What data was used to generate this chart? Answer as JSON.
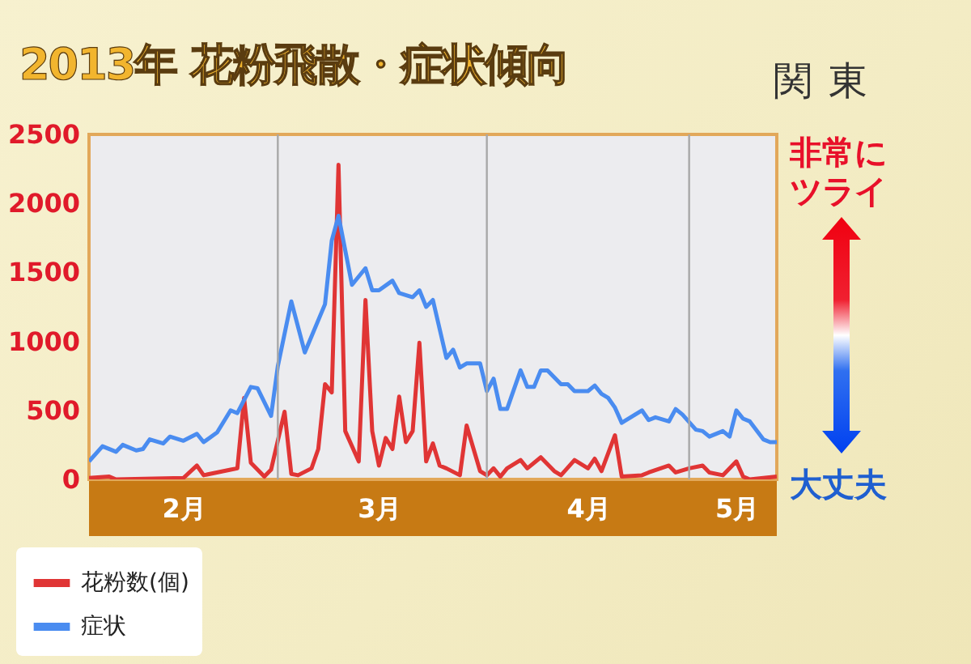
{
  "chart_data": {
    "type": "line",
    "title": "2013年 花粉飛散・症状傾向",
    "subtitle": "関東",
    "annotations": [
      "非常にツライ",
      "大丈夫"
    ],
    "xlim": [
      "2013-02-01",
      "2013-05-14"
    ],
    "xticks": [
      {
        "value": "2013-02-15",
        "label": "2月"
      },
      {
        "value": "2013-03-16",
        "label": "3月"
      },
      {
        "value": "2013-04-16",
        "label": "4月"
      },
      {
        "value": "2013-05-08",
        "label": "5月"
      }
    ],
    "ylim": [
      0,
      2500
    ],
    "yticks": [
      0,
      500,
      1000,
      1500,
      2000,
      2500
    ],
    "grid": false,
    "legend": "bottom left",
    "ref_lines": [
      {
        "axis": "x",
        "value": "2013-03-01",
        "label": null,
        "color": "#a8a8a8"
      },
      {
        "axis": "x",
        "value": "2013-04-01",
        "label": null,
        "color": "#a8a8a8"
      },
      {
        "axis": "x",
        "value": "2013-05-01",
        "label": null,
        "color": "#a8a8a8"
      }
    ],
    "series": [
      {
        "name": "花粉数(個)",
        "color": "#e03535",
        "x": [
          "2013-02-01",
          "2013-02-04",
          "2013-02-05",
          "2013-02-15",
          "2013-02-17",
          "2013-02-18",
          "2013-02-22",
          "2013-02-23",
          "2013-02-24",
          "2013-02-25",
          "2013-02-27",
          "2013-02-28",
          "2013-03-02",
          "2013-03-03",
          "2013-03-04",
          "2013-03-06",
          "2013-03-07",
          "2013-03-08",
          "2013-03-09",
          "2013-03-10",
          "2013-03-11",
          "2013-03-13",
          "2013-03-14",
          "2013-03-15",
          "2013-03-16",
          "2013-03-17",
          "2013-03-18",
          "2013-03-19",
          "2013-03-20",
          "2013-03-21",
          "2013-03-22",
          "2013-03-23",
          "2013-03-24",
          "2013-03-25",
          "2013-03-26",
          "2013-03-28",
          "2013-03-29",
          "2013-03-31",
          "2013-04-01",
          "2013-04-02",
          "2013-04-03",
          "2013-04-04",
          "2013-04-06",
          "2013-04-07",
          "2013-04-09",
          "2013-04-11",
          "2013-04-12",
          "2013-04-14",
          "2013-04-16",
          "2013-04-17",
          "2013-04-18",
          "2013-04-20",
          "2013-04-21",
          "2013-04-24",
          "2013-04-25",
          "2013-04-28",
          "2013-04-29",
          "2013-05-01",
          "2013-05-03",
          "2013-05-04",
          "2013-05-06",
          "2013-05-08",
          "2013-05-09",
          "2013-05-10",
          "2013-05-14"
        ],
        "values": [
          10,
          20,
          0,
          10,
          100,
          30,
          70,
          80,
          590,
          120,
          20,
          70,
          490,
          40,
          30,
          80,
          220,
          690,
          630,
          2280,
          350,
          130,
          1300,
          350,
          100,
          300,
          220,
          600,
          270,
          350,
          990,
          130,
          260,
          100,
          80,
          30,
          390,
          60,
          30,
          80,
          20,
          80,
          140,
          80,
          160,
          60,
          30,
          140,
          80,
          150,
          60,
          320,
          20,
          30,
          50,
          100,
          50,
          80,
          100,
          50,
          30,
          130,
          20,
          0,
          20
        ]
      },
      {
        "name": "症状",
        "color": "#4a8cf0",
        "x": [
          "2013-02-01",
          "2013-02-03",
          "2013-02-05",
          "2013-02-06",
          "2013-02-08",
          "2013-02-09",
          "2013-02-10",
          "2013-02-12",
          "2013-02-13",
          "2013-02-15",
          "2013-02-17",
          "2013-02-18",
          "2013-02-20",
          "2013-02-22",
          "2013-02-23",
          "2013-02-25",
          "2013-02-26",
          "2013-02-28",
          "2013-03-01",
          "2013-03-03",
          "2013-03-05",
          "2013-03-08",
          "2013-03-09",
          "2013-03-10",
          "2013-03-12",
          "2013-03-14",
          "2013-03-15",
          "2013-03-16",
          "2013-03-18",
          "2013-03-19",
          "2013-03-21",
          "2013-03-22",
          "2013-03-23",
          "2013-03-24",
          "2013-03-26",
          "2013-03-27",
          "2013-03-28",
          "2013-03-29",
          "2013-03-31",
          "2013-04-01",
          "2013-04-02",
          "2013-04-03",
          "2013-04-04",
          "2013-04-06",
          "2013-04-07",
          "2013-04-08",
          "2013-04-09",
          "2013-04-10",
          "2013-04-12",
          "2013-04-13",
          "2013-04-14",
          "2013-04-16",
          "2013-04-17",
          "2013-04-18",
          "2013-04-19",
          "2013-04-20",
          "2013-04-21",
          "2013-04-24",
          "2013-04-25",
          "2013-04-26",
          "2013-04-28",
          "2013-04-29",
          "2013-04-30",
          "2013-05-02",
          "2013-05-03",
          "2013-05-04",
          "2013-05-06",
          "2013-05-07",
          "2013-05-08",
          "2013-05-09",
          "2013-05-10",
          "2013-05-12",
          "2013-05-13",
          "2013-05-14"
        ],
        "values": [
          130,
          240,
          200,
          250,
          210,
          220,
          290,
          260,
          310,
          280,
          330,
          270,
          340,
          500,
          480,
          670,
          660,
          460,
          820,
          1290,
          920,
          1270,
          1730,
          1910,
          1410,
          1530,
          1370,
          1370,
          1440,
          1350,
          1320,
          1370,
          1250,
          1300,
          880,
          940,
          810,
          840,
          840,
          640,
          730,
          510,
          510,
          790,
          670,
          670,
          790,
          790,
          690,
          690,
          640,
          640,
          680,
          620,
          590,
          520,
          410,
          500,
          430,
          450,
          420,
          510,
          470,
          360,
          350,
          310,
          350,
          310,
          500,
          440,
          420,
          290,
          270,
          270
        ]
      }
    ]
  }
}
